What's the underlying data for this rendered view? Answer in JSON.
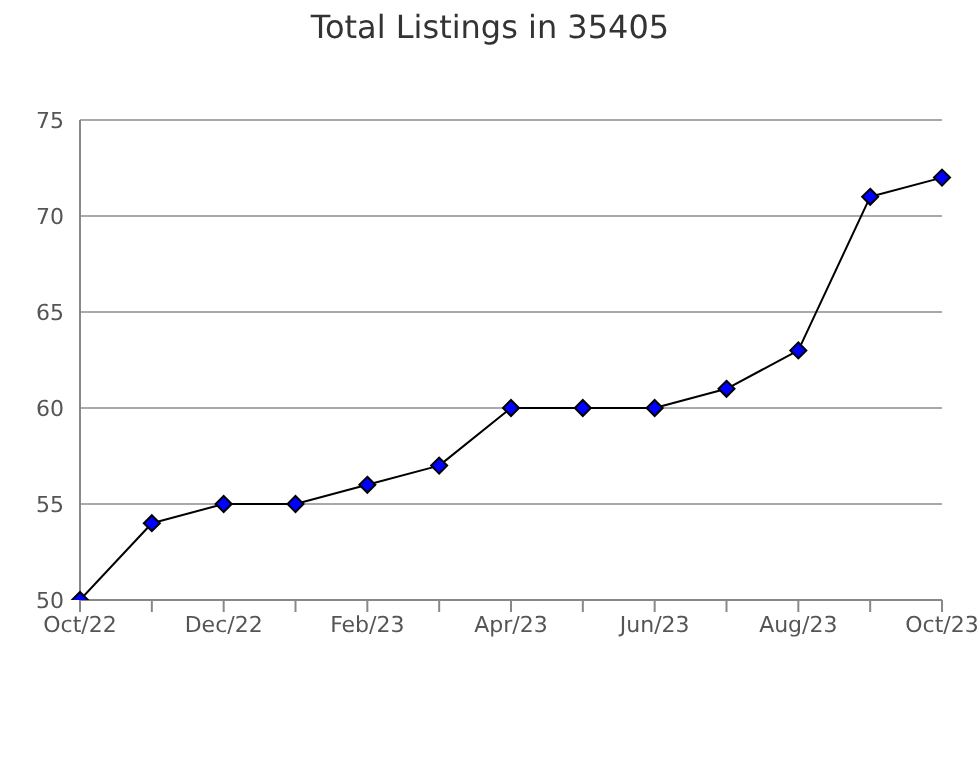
{
  "chart_data": {
    "type": "line",
    "title": "Total Listings in 35405",
    "categories": [
      "Oct/22",
      null,
      "Dec/22",
      null,
      "Feb/23",
      null,
      "Apr/23",
      null,
      "Jun/23",
      null,
      "Aug/23",
      null,
      "Oct/23"
    ],
    "series": [
      {
        "color": "#0000ff",
        "values": [
          50,
          54,
          55,
          55,
          56,
          57,
          60,
          60,
          60,
          61,
          63,
          71,
          72
        ]
      }
    ],
    "ylim": [
      50,
      75
    ],
    "yticks": [
      50,
      55,
      60,
      65,
      70,
      75
    ],
    "grid": "y",
    "marker": "diamond",
    "line_style": "solid",
    "legend": false
  }
}
